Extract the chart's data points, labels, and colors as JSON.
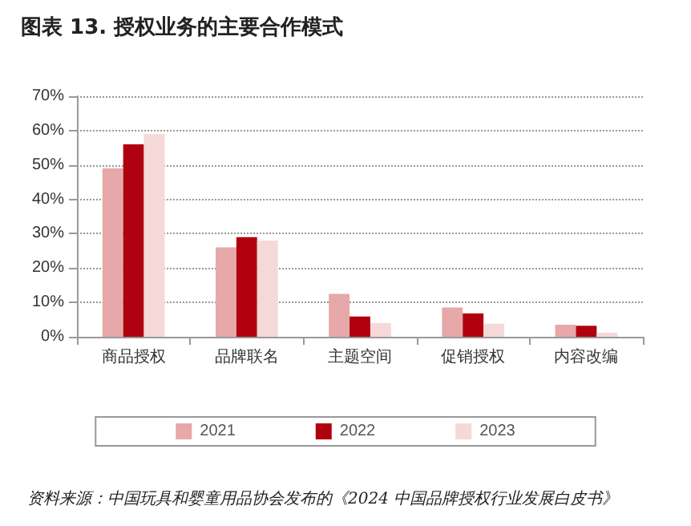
{
  "chart_data": {
    "type": "bar",
    "title": "图表 13. 授权业务的主要合作模式",
    "categories": [
      "商品授权",
      "品牌联名",
      "主题空间",
      "促销授权",
      "内容改编"
    ],
    "series": [
      {
        "name": "2021",
        "color": "#e6a8a8",
        "values": [
          49,
          26,
          12.5,
          8.5,
          3.5
        ]
      },
      {
        "name": "2022",
        "color": "#b0000f",
        "values": [
          56,
          29,
          5.9,
          6.8,
          3.2
        ]
      },
      {
        "name": "2023",
        "color": "#f5d8d8",
        "values": [
          59,
          28,
          4,
          3.8,
          1.2
        ]
      }
    ],
    "ylim": [
      0,
      70
    ],
    "yticks": [
      {
        "value": 0,
        "label": "0%"
      },
      {
        "value": 10,
        "label": "10%"
      },
      {
        "value": 20,
        "label": "20%"
      },
      {
        "value": 30,
        "label": "30%"
      },
      {
        "value": 40,
        "label": "40%"
      },
      {
        "value": 50,
        "label": "50%"
      },
      {
        "value": 60,
        "label": "60%"
      },
      {
        "value": 70,
        "label": "70%"
      }
    ],
    "grid": "y",
    "legend": "bottom",
    "annotations": [
      "资料来源：中国玩具和婴童用品协会发布的《2024 中国品牌授权行业发展白皮书》"
    ]
  }
}
